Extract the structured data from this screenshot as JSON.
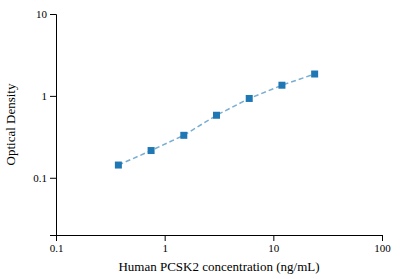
{
  "chart_data": {
    "type": "line",
    "x": [
      0.375,
      0.75,
      1.5,
      3.0,
      6.0,
      12.0,
      24.0
    ],
    "values": [
      0.143,
      0.215,
      0.33,
      0.58,
      0.93,
      1.35,
      1.85
    ],
    "xlabel": "Human PCSK2 concentration (ng/mL)",
    "ylabel": "Optical Density",
    "xlim": [
      0.1,
      100
    ],
    "ylim": [
      0.02,
      10
    ],
    "xticks": [
      0.1,
      1,
      10,
      100
    ],
    "yticks": [
      0.1,
      1,
      10
    ],
    "log": true,
    "marker": "square",
    "line_style": "dashed",
    "grid": false
  }
}
